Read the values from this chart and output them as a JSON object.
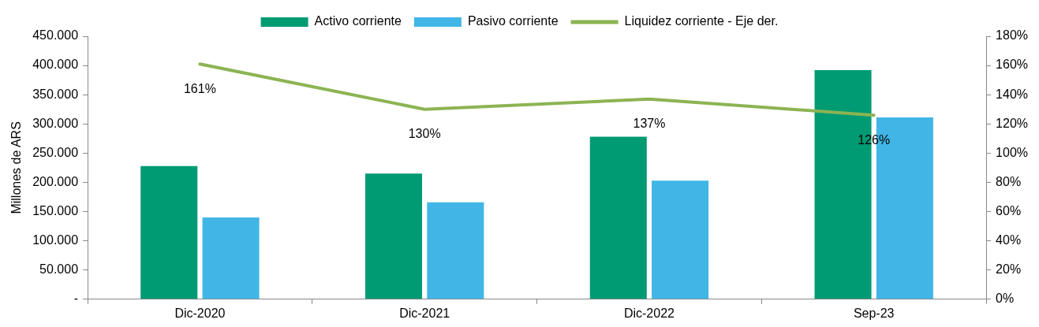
{
  "chart_data": {
    "type": "bar",
    "ylabel": "Millones de ARS",
    "categories": [
      "Dic-2020",
      "Dic-2021",
      "Dic-2022",
      "Sep-23"
    ],
    "series": [
      {
        "name": "Activo corriente",
        "color": "#009a73",
        "values": [
          228000,
          215000,
          278000,
          392000
        ]
      },
      {
        "name": "Pasivo corriente",
        "color": "#41b6e6",
        "values": [
          140000,
          166000,
          203000,
          311000
        ]
      },
      {
        "name": "Liquidez corriente - Eje der.",
        "type": "line",
        "axis": "y2",
        "color": "#8cb453",
        "values": [
          161,
          130,
          137,
          126
        ],
        "value_labels": [
          "161%",
          "130%",
          "137%",
          "126%"
        ]
      }
    ],
    "ylim": [
      0,
      450000
    ],
    "yticks": [
      {
        "value": 0,
        "label": "-"
      },
      {
        "value": 50000,
        "label": "50.000"
      },
      {
        "value": 100000,
        "label": "100.000"
      },
      {
        "value": 150000,
        "label": "150.000"
      },
      {
        "value": 200000,
        "label": "200.000"
      },
      {
        "value": 250000,
        "label": "250.000"
      },
      {
        "value": 300000,
        "label": "300.000"
      },
      {
        "value": 350000,
        "label": "350.000"
      },
      {
        "value": 400000,
        "label": "400.000"
      },
      {
        "value": 450000,
        "label": "450.000"
      }
    ],
    "y2lim": [
      0,
      180
    ],
    "y2ticks": [
      {
        "value": 0,
        "label": "0%"
      },
      {
        "value": 20,
        "label": "20%"
      },
      {
        "value": 40,
        "label": "40%"
      },
      {
        "value": 60,
        "label": "60%"
      },
      {
        "value": 80,
        "label": "80%"
      },
      {
        "value": 100,
        "label": "100%"
      },
      {
        "value": 120,
        "label": "120%"
      },
      {
        "value": 140,
        "label": "140%"
      },
      {
        "value": 160,
        "label": "160%"
      },
      {
        "value": 180,
        "label": "180%"
      }
    ],
    "grid": false,
    "legend": "top",
    "marker": "none"
  }
}
